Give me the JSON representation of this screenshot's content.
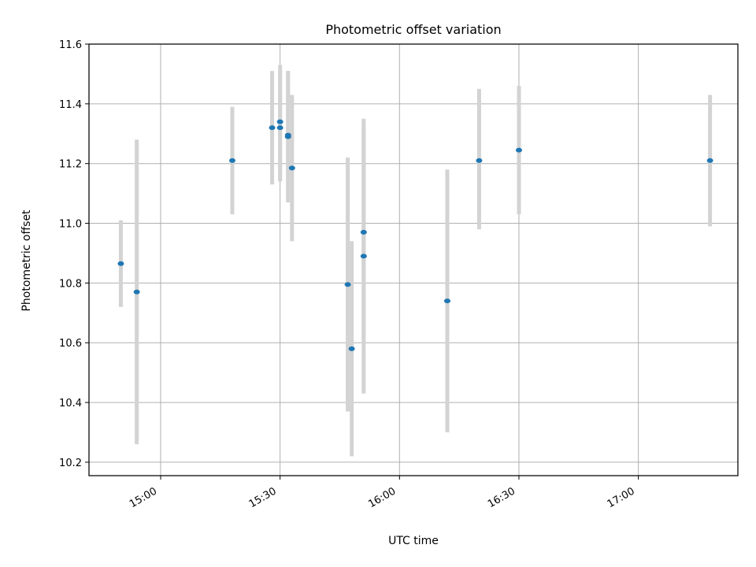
{
  "chart_data": {
    "type": "scatter",
    "title": "Photometric offset variation",
    "xlabel": "UTC time",
    "ylabel": "Photometric offset",
    "x_axis_type": "time",
    "xlim": [
      "14:42",
      "17:25"
    ],
    "ylim": [
      10.155,
      11.6
    ],
    "x_ticks": [
      "15:00",
      "15:30",
      "16:00",
      "16:30",
      "17:00"
    ],
    "y_ticks": [
      10.2,
      10.4,
      10.6,
      10.8,
      11.0,
      11.2,
      11.4,
      11.6
    ],
    "y_tick_labels": [
      "10.2",
      "10.4",
      "10.6",
      "10.8",
      "11.0",
      "11.2",
      "11.4",
      "11.6"
    ],
    "grid": true,
    "legend": false,
    "marker_color": "#1f77b4",
    "errorbar_color": "#d3d3d3",
    "points": [
      {
        "x": "14:50",
        "y": 10.865,
        "ymin": 10.72,
        "ymax": 11.01
      },
      {
        "x": "14:54",
        "y": 10.77,
        "ymin": 10.26,
        "ymax": 11.28
      },
      {
        "x": "15:18",
        "y": 11.21,
        "ymin": 11.03,
        "ymax": 11.39
      },
      {
        "x": "15:28",
        "y": 11.32,
        "ymin": 11.13,
        "ymax": 11.51
      },
      {
        "x": "15:30",
        "y": 11.32,
        "ymin": 11.14,
        "ymax": 11.51
      },
      {
        "x": "15:30",
        "y": 11.34,
        "ymin": 11.14,
        "ymax": 11.53
      },
      {
        "x": "15:32",
        "y": 11.295,
        "ymin": 11.09,
        "ymax": 11.51
      },
      {
        "x": "15:32",
        "y": 11.29,
        "ymin": 11.07,
        "ymax": 11.51
      },
      {
        "x": "15:33",
        "y": 11.185,
        "ymin": 10.94,
        "ymax": 11.43
      },
      {
        "x": "15:47",
        "y": 10.795,
        "ymin": 10.37,
        "ymax": 11.22
      },
      {
        "x": "15:48",
        "y": 10.58,
        "ymin": 10.22,
        "ymax": 10.94
      },
      {
        "x": "15:51",
        "y": 10.97,
        "ymin": 10.61,
        "ymax": 11.32
      },
      {
        "x": "15:51",
        "y": 10.89,
        "ymin": 10.43,
        "ymax": 11.35
      },
      {
        "x": "16:12",
        "y": 10.74,
        "ymin": 10.3,
        "ymax": 11.18
      },
      {
        "x": "16:20",
        "y": 11.21,
        "ymin": 10.98,
        "ymax": 11.45
      },
      {
        "x": "16:30",
        "y": 11.245,
        "ymin": 11.03,
        "ymax": 11.46
      },
      {
        "x": "17:18",
        "y": 11.21,
        "ymin": 10.99,
        "ymax": 11.43
      }
    ]
  }
}
